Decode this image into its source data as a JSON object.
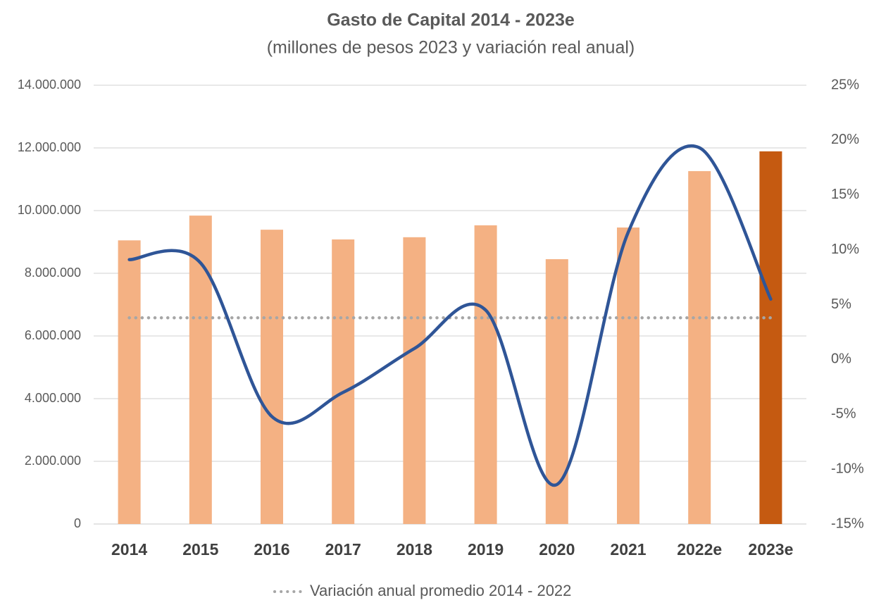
{
  "chart_data": {
    "type": "bar_line",
    "title": "Gasto de Capital 2014 - 2023e",
    "subtitle": "(millones de pesos 2023 y variación real anual)",
    "categories": [
      "2014",
      "2015",
      "2016",
      "2017",
      "2018",
      "2019",
      "2020",
      "2021",
      "2022e",
      "2023e"
    ],
    "series": [
      {
        "type": "bar",
        "colors": [
          "#f4b183",
          "#f4b183",
          "#f4b183",
          "#f4b183",
          "#f4b183",
          "#f4b183",
          "#f4b183",
          "#f4b183",
          "#f4b183",
          "#c55a11"
        ],
        "values": [
          9050000,
          9840000,
          9390000,
          9080000,
          9150000,
          9530000,
          8450000,
          9460000,
          11260000,
          11890000
        ]
      },
      {
        "type": "line",
        "axis": "y2",
        "color": "#2f5597",
        "smooth": true,
        "values": [
          9.1,
          8.8,
          -5.2,
          -3.0,
          1.0,
          4.5,
          -11.4,
          11.6,
          19.3,
          5.5
        ]
      }
    ],
    "reference_line": {
      "name": "Variación anual promedio 2014 - 2022",
      "value": 3.8,
      "axis": "y2",
      "color": "#a6a6a6",
      "style": "dotted"
    },
    "ylim": [
      0,
      14000000
    ],
    "yticks": [
      0,
      {
        "value": 2000000,
        "label": "2.000.000"
      },
      {
        "value": 4000000,
        "label": "4.000.000"
      },
      {
        "value": 6000000,
        "label": "6.000.000"
      },
      {
        "value": 8000000,
        "label": "8.000.000"
      },
      {
        "value": 10000000,
        "label": "10.000.000"
      },
      {
        "value": 12000000,
        "label": "12.000.000"
      },
      {
        "value": 14000000,
        "label": "14.000.000"
      }
    ],
    "y2lim": [
      -15,
      25
    ],
    "y2ticks": [
      {
        "value": -15,
        "label": "-15%"
      },
      {
        "value": -10,
        "label": "-10%"
      },
      {
        "value": -5,
        "label": "-5%"
      },
      {
        "value": 0,
        "label": "0%"
      },
      {
        "value": 5,
        "label": "5%"
      },
      {
        "value": 10,
        "label": "10%"
      },
      {
        "value": 15,
        "label": "15%"
      },
      {
        "value": 20,
        "label": "20%"
      },
      {
        "value": 25,
        "label": "25%"
      }
    ],
    "grid": true,
    "legend": "bottom"
  }
}
